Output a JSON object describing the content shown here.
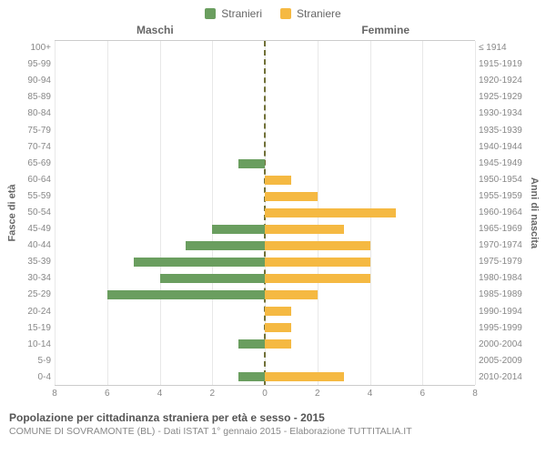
{
  "legend": {
    "male_label": "Stranieri",
    "female_label": "Straniere",
    "male_color": "#6a9e5f",
    "female_color": "#f5b942"
  },
  "headers": {
    "left": "Maschi",
    "right": "Femmine"
  },
  "axis_labels": {
    "left": "Fasce di età",
    "right": "Anni di nascita"
  },
  "chart": {
    "type": "population-pyramid",
    "xmax": 8,
    "xtick_step": 2,
    "xticks_left": [
      8,
      6,
      4,
      2,
      0
    ],
    "xticks_right": [
      0,
      2,
      4,
      6,
      8
    ],
    "grid_color": "#cccccc",
    "centerline_color": "#707038",
    "background_color": "#ffffff",
    "bar_height_ratio": 0.6,
    "rows": [
      {
        "age": "100+",
        "birth": "≤ 1914",
        "m": 0,
        "f": 0
      },
      {
        "age": "95-99",
        "birth": "1915-1919",
        "m": 0,
        "f": 0
      },
      {
        "age": "90-94",
        "birth": "1920-1924",
        "m": 0,
        "f": 0
      },
      {
        "age": "85-89",
        "birth": "1925-1929",
        "m": 0,
        "f": 0
      },
      {
        "age": "80-84",
        "birth": "1930-1934",
        "m": 0,
        "f": 0
      },
      {
        "age": "75-79",
        "birth": "1935-1939",
        "m": 0,
        "f": 0
      },
      {
        "age": "70-74",
        "birth": "1940-1944",
        "m": 0,
        "f": 0
      },
      {
        "age": "65-69",
        "birth": "1945-1949",
        "m": 1.0,
        "f": 0
      },
      {
        "age": "60-64",
        "birth": "1950-1954",
        "m": 0,
        "f": 1.0
      },
      {
        "age": "55-59",
        "birth": "1955-1959",
        "m": 0,
        "f": 2.0
      },
      {
        "age": "50-54",
        "birth": "1960-1964",
        "m": 0,
        "f": 5.0
      },
      {
        "age": "45-49",
        "birth": "1965-1969",
        "m": 2.0,
        "f": 3.0
      },
      {
        "age": "40-44",
        "birth": "1970-1974",
        "m": 3.0,
        "f": 4.0
      },
      {
        "age": "35-39",
        "birth": "1975-1979",
        "m": 5.0,
        "f": 4.0
      },
      {
        "age": "30-34",
        "birth": "1980-1984",
        "m": 4.0,
        "f": 4.0
      },
      {
        "age": "25-29",
        "birth": "1985-1989",
        "m": 6.0,
        "f": 2.0
      },
      {
        "age": "20-24",
        "birth": "1990-1994",
        "m": 0,
        "f": 1.0
      },
      {
        "age": "15-19",
        "birth": "1995-1999",
        "m": 0,
        "f": 1.0
      },
      {
        "age": "10-14",
        "birth": "2000-2004",
        "m": 1.0,
        "f": 1.0
      },
      {
        "age": "5-9",
        "birth": "2005-2009",
        "m": 0,
        "f": 0
      },
      {
        "age": "0-4",
        "birth": "2010-2014",
        "m": 1.0,
        "f": 3.0
      }
    ]
  },
  "caption": {
    "title": "Popolazione per cittadinanza straniera per età e sesso - 2015",
    "subtitle": "COMUNE DI SOVRAMONTE (BL) - Dati ISTAT 1° gennaio 2015 - Elaborazione TUTTITALIA.IT"
  },
  "typography": {
    "tick_fontsize": 10,
    "header_fontsize": 12,
    "legend_fontsize": 12,
    "axis_label_fontsize": 11,
    "title_fontsize": 12,
    "subtitle_fontsize": 10.5,
    "text_color": "#666666",
    "subtext_color": "#888888"
  }
}
